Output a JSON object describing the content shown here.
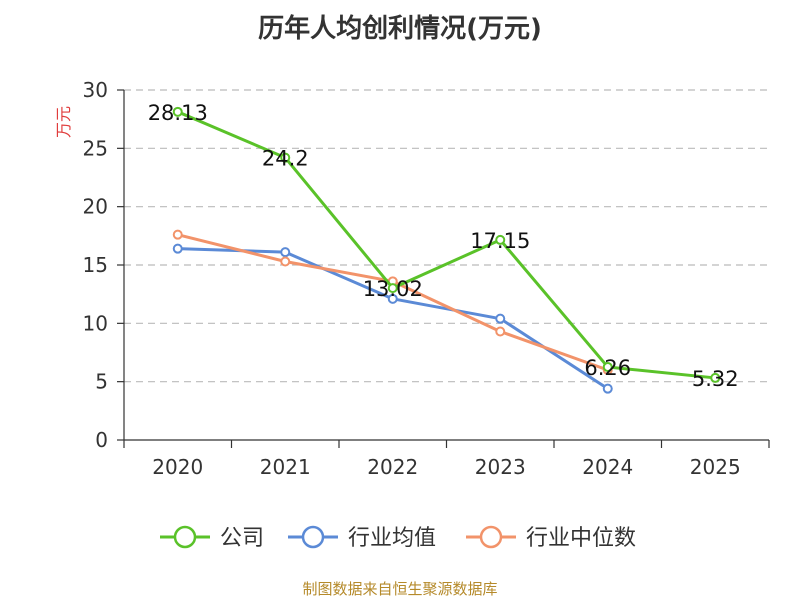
{
  "chart_data": {
    "type": "line",
    "title": "历年人均创利情况(万元)",
    "ylabel": "万元",
    "xlabel": "",
    "categories": [
      "2020",
      "2021",
      "2022",
      "2023",
      "2024",
      "2025"
    ],
    "ylim": [
      0,
      30
    ],
    "yticks": [
      0,
      5,
      10,
      15,
      20,
      25,
      30
    ],
    "grid": true,
    "legend_position": "bottom",
    "series": [
      {
        "name": "公司",
        "color": "#5ac229",
        "values": [
          28.13,
          24.2,
          13.02,
          17.15,
          6.26,
          5.32
        ],
        "labels": [
          "28.13",
          "24.2",
          "13.02",
          "17.15",
          "6.26",
          "5.32"
        ]
      },
      {
        "name": "行业均值",
        "color": "#5b8ad6",
        "values": [
          16.4,
          16.1,
          12.1,
          10.4,
          4.4,
          null
        ]
      },
      {
        "name": "行业中位数",
        "color": "#f2936a",
        "values": [
          17.6,
          15.3,
          13.6,
          9.3,
          6.0,
          null
        ]
      }
    ],
    "ylabel_color": "#e03c3c"
  },
  "footer": "制图数据来自恒生聚源数据库"
}
